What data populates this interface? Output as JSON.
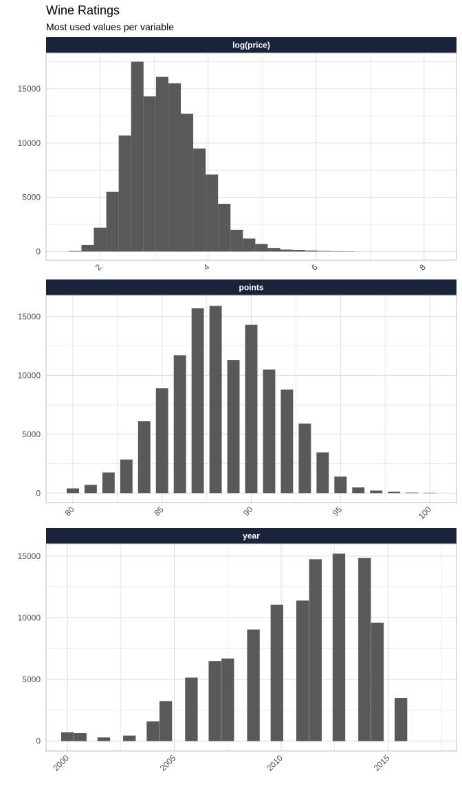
{
  "title": "Wine Ratings",
  "subtitle": "Most used values per variable",
  "colors": {
    "strip": "#19233a",
    "bar": "#595959",
    "grid": "#dcdcdc",
    "axis_text": "#4d4d4d"
  },
  "chart_data": [
    {
      "type": "bar",
      "panel_title": "log(price)",
      "xlim": [
        1.0,
        8.6
      ],
      "ylim": [
        -800,
        18300
      ],
      "xticks": [
        2,
        4,
        6,
        8
      ],
      "yticks": [
        0,
        5000,
        10000,
        15000
      ],
      "bin_width": 0.23,
      "bins_x": [
        1.54,
        1.77,
        2.0,
        2.23,
        2.46,
        2.69,
        2.92,
        3.15,
        3.38,
        3.61,
        3.84,
        4.07,
        4.3,
        4.53,
        4.76,
        4.99,
        5.22,
        5.45,
        5.68,
        5.91,
        6.14,
        6.37,
        6.6
      ],
      "values": [
        50,
        600,
        2200,
        5500,
        10700,
        17500,
        14300,
        16100,
        15500,
        12700,
        9500,
        7100,
        4400,
        2000,
        1200,
        700,
        330,
        180,
        150,
        90,
        50,
        30,
        20
      ]
    },
    {
      "type": "bar",
      "panel_title": "points",
      "xlim": [
        78.5,
        101.5
      ],
      "ylim": [
        -800,
        16800
      ],
      "xticks": [
        80,
        85,
        90,
        95,
        100
      ],
      "yticks": [
        0,
        5000,
        10000,
        15000
      ],
      "bin_width": 0.69,
      "bins_x": [
        80,
        81,
        82,
        83,
        84,
        85,
        86,
        87,
        88,
        89,
        90,
        91,
        92,
        93,
        94,
        95,
        96,
        97,
        98,
        99,
        100
      ],
      "values": [
        400,
        700,
        1750,
        2850,
        6100,
        8900,
        11700,
        15700,
        15900,
        11300,
        14300,
        10500,
        8800,
        5900,
        3450,
        1400,
        480,
        220,
        110,
        45,
        30
      ]
    },
    {
      "type": "bar",
      "panel_title": "year",
      "xlim": [
        1999.0,
        2018.2
      ],
      "ylim": [
        -800,
        16000
      ],
      "xticks": [
        2000,
        2005,
        2010,
        2015
      ],
      "yticks": [
        0,
        5000,
        10000,
        15000
      ],
      "bin_width": 0.59,
      "bins_x": [
        2000,
        2000.6,
        2001.7,
        2002.9,
        2004,
        2004.6,
        2005.8,
        2006.9,
        2007.5,
        2008.7,
        2009.8,
        2011,
        2011.6,
        2012.7,
        2013.9,
        2014.5,
        2015.6
      ],
      "values": [
        720,
        650,
        300,
        450,
        1600,
        3250,
        5150,
        6500,
        6700,
        9050,
        11050,
        11400,
        14750,
        15200,
        14850,
        9600,
        3500
      ]
    }
  ]
}
